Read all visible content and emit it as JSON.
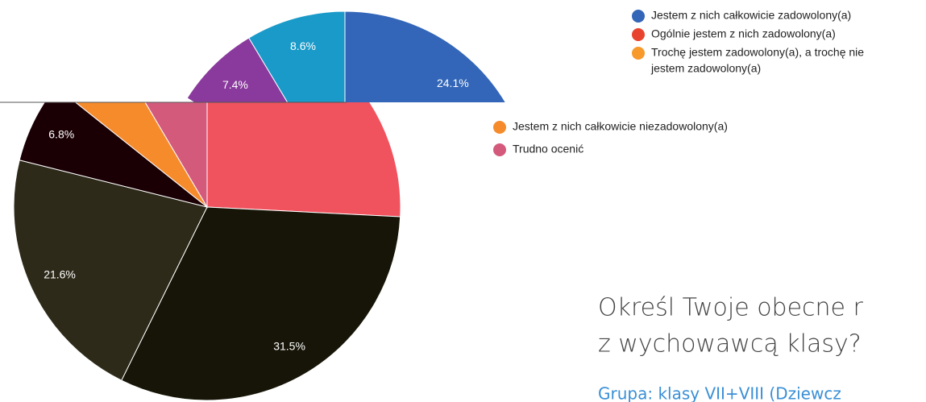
{
  "chart_data": [
    {
      "type": "pie",
      "values": [
        24.1,
        8.6,
        7.4
      ],
      "value_labels": [
        "24.1%",
        "8.6%",
        "7.4%"
      ],
      "colors": [
        "#3366b8",
        "#1a9ac9",
        "#8a3a9c"
      ],
      "direction": [
        1,
        -1,
        -1
      ],
      "legend": [
        {
          "lines": [
            "Jestem z nich całkowicie zadowolony(a)"
          ],
          "color": "#3366b8"
        },
        {
          "lines": [
            "Ogólnie jestem z nich zadowolony(a)"
          ],
          "color": "#e8432e"
        },
        {
          "lines": [
            "Trochę jestem zadowolony(a), a trochę nie",
            "jestem zadowolony(a)"
          ],
          "color": "#f7992b"
        }
      ]
    },
    {
      "type": "pie",
      "values": [
        25.8,
        31.5,
        21.6,
        6.8,
        5.8,
        8.5
      ],
      "value_labels": [
        null,
        "31.5%",
        "21.6%",
        "6.8%",
        null,
        null
      ],
      "colors": [
        "#f0525e",
        "#171507",
        "#2e2a1a",
        "#1a0005",
        "#f68b2c",
        "#d45a7c"
      ],
      "legend": [
        {
          "lines": [
            "Jestem z nich całkowicie niezadowolony(a)"
          ],
          "color": "#f68b2c"
        },
        {
          "lines": [
            "Trudno ocenić"
          ],
          "color": "#d45a7c"
        }
      ]
    }
  ],
  "question": {
    "lines": [
      "Określ Twoje obecne r",
      "z wychowawcą klasy?"
    ],
    "group": "Grupa: klasy VII+VIII (Dziewcz"
  }
}
